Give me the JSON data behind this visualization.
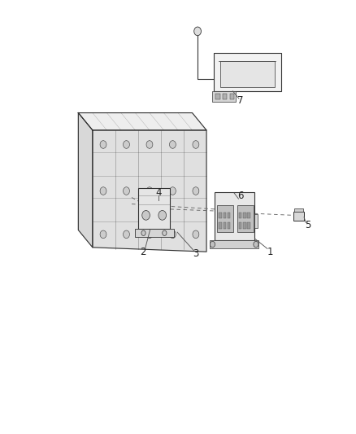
{
  "bg_color": "#ffffff",
  "fig_width": 4.38,
  "fig_height": 5.33,
  "dpi": 100,
  "lc": "#333333",
  "dc": "#666666",
  "lw": 0.8
}
